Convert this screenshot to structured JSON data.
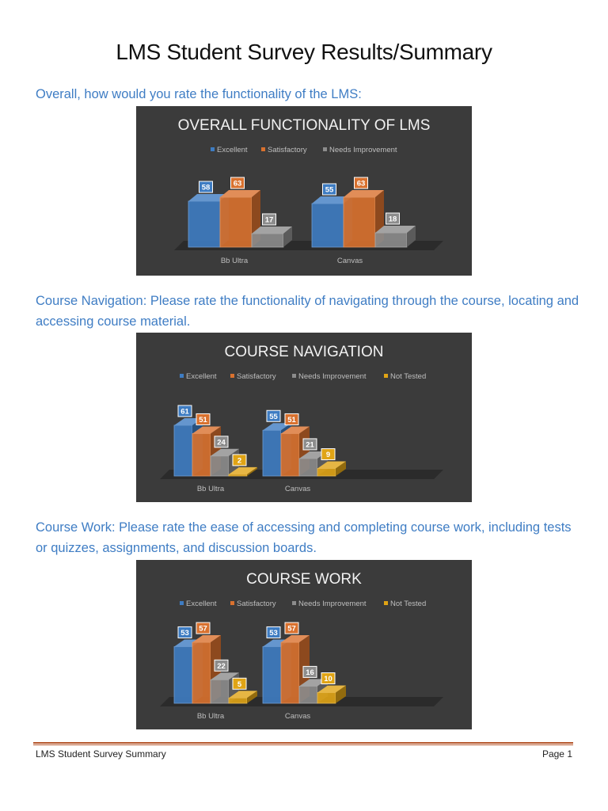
{
  "document": {
    "title": "LMS Student Survey Results/Summary",
    "footer_left": "LMS Student Survey Summary",
    "footer_right": "Page 1"
  },
  "questions": [
    "Overall, how would you rate the functionality of the LMS:",
    "Course Navigation: Please rate the functionality of navigating through the course, locating and accessing course material.",
    "Course Work: Please rate the ease of accessing and completing course work, including tests or quizzes, assignments, and discussion boards."
  ],
  "colors": {
    "Excellent": "#3e7cc2",
    "Satisfactory": "#d9712e",
    "Needs Improvement": "#8c8c8c",
    "Not Tested": "#e0a415",
    "panel": "#3b3b3b",
    "question_text": "#3f7dc4"
  },
  "chart_data": [
    {
      "type": "bar",
      "title": "OVERALL FUNCTIONALITY OF LMS",
      "categories": [
        "Bb Ultra",
        "Canvas"
      ],
      "series": [
        {
          "name": "Excellent",
          "values": [
            58,
            55
          ]
        },
        {
          "name": "Satisfactory",
          "values": [
            63,
            63
          ]
        },
        {
          "name": "Needs Improvement",
          "values": [
            17,
            18
          ]
        }
      ],
      "ylim": [
        0,
        100
      ],
      "legend": "top",
      "grid": false
    },
    {
      "type": "bar",
      "title": "COURSE NAVIGATION",
      "categories": [
        "Bb Ultra",
        "Canvas"
      ],
      "series": [
        {
          "name": "Excellent",
          "values": [
            61,
            55
          ]
        },
        {
          "name": "Satisfactory",
          "values": [
            51,
            51
          ]
        },
        {
          "name": "Needs Improvement",
          "values": [
            24,
            21
          ]
        },
        {
          "name": "Not Tested",
          "values": [
            2,
            9
          ]
        }
      ],
      "ylim": [
        0,
        100
      ],
      "legend": "top",
      "grid": false
    },
    {
      "type": "bar",
      "title": "COURSE WORK",
      "categories": [
        "Bb Ultra",
        "Canvas"
      ],
      "series": [
        {
          "name": "Excellent",
          "values": [
            53,
            53
          ]
        },
        {
          "name": "Satisfactory",
          "values": [
            57,
            57
          ]
        },
        {
          "name": "Needs Improvement",
          "values": [
            22,
            16
          ]
        },
        {
          "name": "Not Tested",
          "values": [
            5,
            10
          ]
        }
      ],
      "ylim": [
        0,
        100
      ],
      "legend": "top",
      "grid": false
    }
  ]
}
